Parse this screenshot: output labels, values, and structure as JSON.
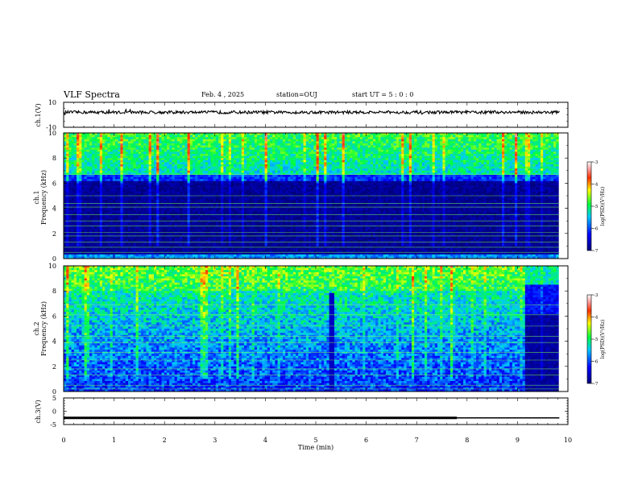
{
  "header": {
    "title": "VLF Spectra",
    "date": "Feb. 4 , 2025",
    "station": "station=OUJ",
    "start": "start UT = 5 : 0 : 0"
  },
  "chart_data": [
    {
      "type": "line",
      "panel": "ch1",
      "ylabel": "ch.1(V)",
      "ylim": [
        -10,
        10
      ],
      "yticks": [
        "10",
        "-10"
      ],
      "series": [
        {
          "values_description_level": 2,
          "noise_amplitude": 1.2
        }
      ]
    },
    {
      "type": "heatmap",
      "panel": "ch1-spectrogram",
      "ylabel_line1": "ch.1",
      "ylabel_line2": "Frequency (kHz)",
      "ylim": [
        0,
        10
      ],
      "yticks": [
        "0",
        "2",
        "4",
        "6",
        "8",
        "10"
      ],
      "xlim": [
        0,
        10
      ],
      "colorbar": {
        "label": "log(PSD)(V²/Hz)",
        "range": [
          -7,
          -3
        ],
        "ticks": [
          "-3",
          "-4",
          "-5",
          "-6",
          "-7"
        ]
      },
      "cutoff_khz": 6.8
    },
    {
      "type": "heatmap",
      "panel": "ch2-spectrogram",
      "ylabel_line1": "ch.2",
      "ylabel_line2": "Frequency (kHz)",
      "ylim": [
        0,
        10
      ],
      "yticks": [
        "0",
        "2",
        "4",
        "6",
        "8",
        "10"
      ],
      "xlim": [
        0,
        10
      ],
      "colorbar": {
        "label": "log(PSD)(V²/Hz)",
        "range": [
          -7,
          -3
        ],
        "ticks": [
          "-3",
          "-4",
          "-5",
          "-6",
          "-7"
        ]
      },
      "quiet_after_min": 9.1
    },
    {
      "type": "line",
      "panel": "ch3",
      "ylabel": "ch.3(V)",
      "ylim": [
        -5,
        5
      ],
      "yticks": [
        "5",
        "0",
        "-5"
      ],
      "series": [
        {
          "x": [
            0,
            7.8
          ],
          "values": [
            -2.5,
            -2.5
          ]
        },
        {
          "x": [
            7.8,
            9.83
          ],
          "values": [
            -2.5,
            -2.5
          ]
        }
      ],
      "xlabel": "Time (min)",
      "xticks": [
        "0",
        "1",
        "2",
        "3",
        "4",
        "5",
        "6",
        "7",
        "8",
        "9",
        "10"
      ]
    }
  ]
}
